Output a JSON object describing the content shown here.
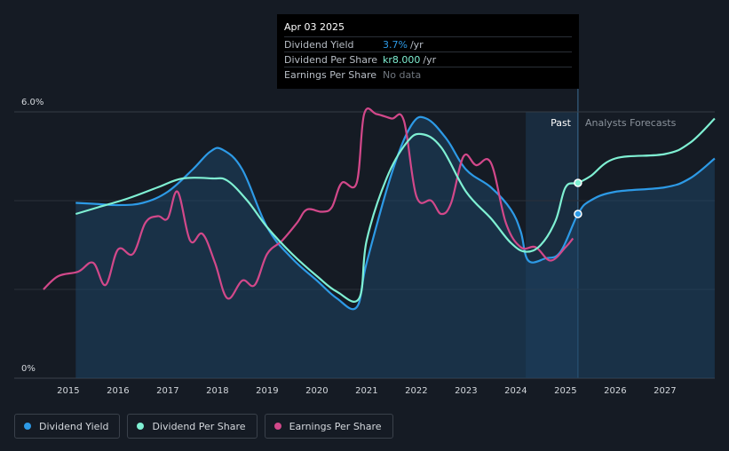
{
  "chart_data": {
    "type": "line",
    "title": "",
    "ylabel": "",
    "y_ticks": [
      "0%",
      "6.0%"
    ],
    "ylim": [
      0,
      6.0
    ],
    "xlim": [
      2014.5,
      2028.0
    ],
    "x_ticks": [
      "2015",
      "2016",
      "2017",
      "2018",
      "2019",
      "2020",
      "2021",
      "2022",
      "2023",
      "2024",
      "2025",
      "2026",
      "2027"
    ],
    "regions": {
      "past_label": "Past",
      "forecast_label": "Analysts Forecasts",
      "past_start": 2024.2,
      "today": 2025.25
    },
    "series": [
      {
        "name": "Dividend Yield",
        "color": "#2d9ae6",
        "area": true,
        "points": [
          [
            2015.15,
            3.95
          ],
          [
            2015.5,
            3.93
          ],
          [
            2016.0,
            3.9
          ],
          [
            2016.5,
            3.95
          ],
          [
            2017.0,
            4.2
          ],
          [
            2017.5,
            4.7
          ],
          [
            2017.85,
            5.1
          ],
          [
            2018.1,
            5.15
          ],
          [
            2018.5,
            4.7
          ],
          [
            2019.0,
            3.4
          ],
          [
            2019.5,
            2.7
          ],
          [
            2020.0,
            2.2
          ],
          [
            2020.4,
            1.8
          ],
          [
            2020.8,
            1.6
          ],
          [
            2021.0,
            2.6
          ],
          [
            2021.5,
            4.6
          ],
          [
            2021.9,
            5.7
          ],
          [
            2022.2,
            5.85
          ],
          [
            2022.6,
            5.4
          ],
          [
            2023.0,
            4.7
          ],
          [
            2023.5,
            4.3
          ],
          [
            2023.9,
            3.8
          ],
          [
            2024.1,
            3.3
          ],
          [
            2024.25,
            2.65
          ],
          [
            2024.6,
            2.7
          ],
          [
            2024.9,
            2.85
          ],
          [
            2025.25,
            3.7
          ],
          [
            2025.5,
            4.0
          ],
          [
            2026.0,
            4.2
          ],
          [
            2027.0,
            4.3
          ],
          [
            2027.5,
            4.5
          ],
          [
            2028.0,
            4.95
          ]
        ]
      },
      {
        "name": "Dividend Per Share",
        "color": "#7ff0d3",
        "area": false,
        "points": [
          [
            2015.15,
            3.7
          ],
          [
            2015.6,
            3.85
          ],
          [
            2016.2,
            4.05
          ],
          [
            2016.8,
            4.3
          ],
          [
            2017.3,
            4.5
          ],
          [
            2017.9,
            4.5
          ],
          [
            2018.2,
            4.45
          ],
          [
            2018.6,
            4.0
          ],
          [
            2019.0,
            3.4
          ],
          [
            2019.5,
            2.8
          ],
          [
            2020.0,
            2.3
          ],
          [
            2020.4,
            1.95
          ],
          [
            2020.85,
            1.8
          ],
          [
            2021.0,
            3.1
          ],
          [
            2021.4,
            4.5
          ],
          [
            2021.8,
            5.3
          ],
          [
            2022.1,
            5.5
          ],
          [
            2022.5,
            5.2
          ],
          [
            2023.0,
            4.2
          ],
          [
            2023.5,
            3.6
          ],
          [
            2023.9,
            3.05
          ],
          [
            2024.2,
            2.85
          ],
          [
            2024.5,
            3.0
          ],
          [
            2024.8,
            3.55
          ],
          [
            2025.0,
            4.3
          ],
          [
            2025.25,
            4.4
          ],
          [
            2025.5,
            4.55
          ],
          [
            2026.0,
            4.95
          ],
          [
            2027.0,
            5.05
          ],
          [
            2027.5,
            5.3
          ],
          [
            2028.0,
            5.85
          ]
        ]
      },
      {
        "name": "Earnings Per Share",
        "color": "#d2488a",
        "area": false,
        "points": [
          [
            2014.5,
            2.0
          ],
          [
            2014.8,
            2.3
          ],
          [
            2015.2,
            2.4
          ],
          [
            2015.5,
            2.6
          ],
          [
            2015.75,
            2.1
          ],
          [
            2016.0,
            2.9
          ],
          [
            2016.3,
            2.8
          ],
          [
            2016.55,
            3.5
          ],
          [
            2016.8,
            3.65
          ],
          [
            2017.0,
            3.6
          ],
          [
            2017.2,
            4.2
          ],
          [
            2017.45,
            3.1
          ],
          [
            2017.7,
            3.25
          ],
          [
            2017.95,
            2.6
          ],
          [
            2018.2,
            1.8
          ],
          [
            2018.5,
            2.2
          ],
          [
            2018.75,
            2.1
          ],
          [
            2019.0,
            2.8
          ],
          [
            2019.3,
            3.1
          ],
          [
            2019.6,
            3.5
          ],
          [
            2019.8,
            3.8
          ],
          [
            2020.1,
            3.75
          ],
          [
            2020.3,
            3.85
          ],
          [
            2020.5,
            4.4
          ],
          [
            2020.8,
            4.4
          ],
          [
            2020.95,
            5.95
          ],
          [
            2021.2,
            5.95
          ],
          [
            2021.5,
            5.85
          ],
          [
            2021.75,
            5.8
          ],
          [
            2022.0,
            4.1
          ],
          [
            2022.3,
            4.0
          ],
          [
            2022.5,
            3.7
          ],
          [
            2022.7,
            3.95
          ],
          [
            2022.95,
            5.0
          ],
          [
            2023.2,
            4.8
          ],
          [
            2023.5,
            4.85
          ],
          [
            2023.8,
            3.5
          ],
          [
            2024.1,
            2.95
          ],
          [
            2024.4,
            2.95
          ],
          [
            2024.7,
            2.65
          ],
          [
            2025.0,
            2.95
          ],
          [
            2025.15,
            3.15
          ]
        ]
      }
    ],
    "tooltip": {
      "date": "Apr 03 2025",
      "rows": [
        {
          "label": "Dividend Yield",
          "value": "3.7%",
          "unit": "/yr"
        },
        {
          "label": "Dividend Per Share",
          "value": "kr8.000",
          "unit": "/yr"
        },
        {
          "label": "Earnings Per Share",
          "value": "No data",
          "unit": ""
        }
      ]
    },
    "legend": [
      {
        "label": "Dividend Yield",
        "color": "#2d9ae6"
      },
      {
        "label": "Dividend Per Share",
        "color": "#7ff0d3"
      },
      {
        "label": "Earnings Per Share",
        "color": "#d2488a"
      }
    ]
  }
}
